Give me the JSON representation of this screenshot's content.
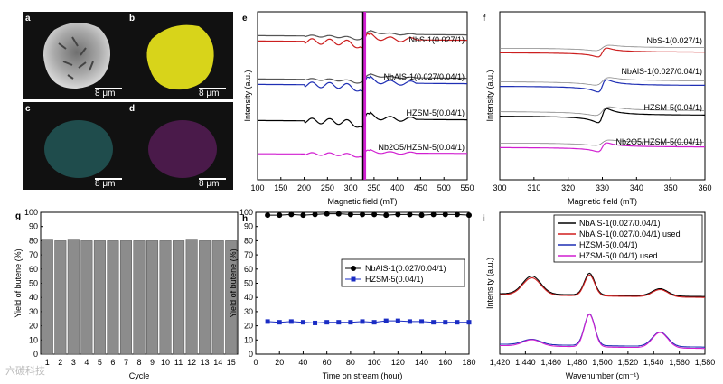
{
  "images": {
    "a": {
      "label": "a",
      "scale": "8 μm",
      "color": "#9a9a9a"
    },
    "b": {
      "label": "b",
      "scale": "8 μm",
      "color": "#d8d41a"
    },
    "c": {
      "label": "c",
      "scale": "8 μm",
      "color": "#1f4c4c"
    },
    "d": {
      "label": "d",
      "scale": "8 μm",
      "color": "#4a1a4a"
    }
  },
  "watermark": "六碳科技",
  "chart_data": [
    {
      "panel": "e",
      "type": "line",
      "xlabel": "Magnetic field (mT)",
      "ylabel": "Intensity (a.u.)",
      "xlim": [
        100,
        550
      ],
      "xticks": [
        100,
        150,
        200,
        250,
        300,
        350,
        400,
        450,
        500,
        550
      ],
      "series": [
        {
          "name": "NbS-1(0.027/1)",
          "color": "#cc1f1f",
          "fit_color": "#555555"
        },
        {
          "name": "NbAlS-1(0.027/0.04/1)",
          "color": "#1f2fb4",
          "fit_color": "#555555"
        },
        {
          "name": "HZSM-5(0.04/1)",
          "color": "#000000"
        },
        {
          "name": "Nb2O5/HZSM-5(0.04/1)",
          "color": "#d11fd1"
        }
      ]
    },
    {
      "panel": "f",
      "type": "line",
      "xlabel": "Magnetic field (mT)",
      "ylabel": "Intensity (a.u.)",
      "xlim": [
        300,
        360
      ],
      "xticks": [
        300,
        310,
        320,
        330,
        340,
        350,
        360
      ],
      "series": [
        {
          "name": "NbS-1(0.027/1)",
          "color": "#cc1f1f"
        },
        {
          "name": "NbAlS-1(0.027/0.04/1)",
          "color": "#1f2fb4"
        },
        {
          "name": "HZSM-5(0.04/1)",
          "color": "#000000"
        },
        {
          "name": "Nb2O5/HZSM-5(0.04/1)",
          "color": "#d11fd1"
        }
      ]
    },
    {
      "panel": "g",
      "type": "bar",
      "xlabel": "Cycle",
      "ylabel": "Yield of butene (%)",
      "ylim": [
        0,
        100
      ],
      "yticks": [
        0,
        10,
        20,
        30,
        40,
        50,
        60,
        70,
        80,
        90,
        100
      ],
      "categories": [
        "1",
        "2",
        "3",
        "4",
        "5",
        "6",
        "7",
        "8",
        "9",
        "10",
        "11",
        "12",
        "13",
        "14",
        "15"
      ],
      "values": [
        80.5,
        80,
        80.5,
        80,
        80,
        80,
        80,
        80,
        80,
        80,
        80,
        80.5,
        80,
        80,
        80
      ],
      "bar_color": "#8c8c8c"
    },
    {
      "panel": "h",
      "type": "scatter",
      "xlabel": "Time on stream (hour)",
      "ylabel": "Yield of butene (%)",
      "xlim": [
        0,
        180
      ],
      "ylim": [
        0,
        100
      ],
      "xticks": [
        0,
        20,
        40,
        60,
        80,
        100,
        120,
        140,
        160,
        180
      ],
      "yticks": [
        0,
        10,
        20,
        30,
        40,
        50,
        60,
        70,
        80,
        90,
        100
      ],
      "series": [
        {
          "name": "NbAlS-1(0.027/0.04/1)",
          "color": "#000000",
          "marker": "circle",
          "x": [
            10,
            20,
            30,
            40,
            50,
            60,
            70,
            80,
            90,
            100,
            110,
            120,
            130,
            140,
            150,
            160,
            170,
            180
          ],
          "y": [
            98,
            98,
            98.5,
            98,
            98.5,
            99,
            99,
            98.5,
            98.5,
            98.5,
            98,
            98.5,
            98.5,
            98,
            98.5,
            98.5,
            98.5,
            98
          ]
        },
        {
          "name": "HZSM-5(0.04/1)",
          "color": "#1a2cc4",
          "marker": "square",
          "x": [
            10,
            20,
            30,
            40,
            50,
            60,
            70,
            80,
            90,
            100,
            110,
            120,
            130,
            140,
            150,
            160,
            170,
            180
          ],
          "y": [
            23,
            22.5,
            23,
            22.5,
            22,
            22.5,
            22.5,
            22.5,
            23,
            22.5,
            23.5,
            23.5,
            23,
            23,
            22.5,
            22.5,
            22.5,
            22.5
          ]
        }
      ]
    },
    {
      "panel": "i",
      "type": "line",
      "xlabel": "Wavenumber (cm⁻¹)",
      "ylabel": "Intensity (a.u.)",
      "xlim": [
        1420,
        1580
      ],
      "xticks": [
        "1,420",
        "1,440",
        "1,460",
        "1,480",
        "1,500",
        "1,520",
        "1,540",
        "1,560",
        "1,580"
      ],
      "series": [
        {
          "name": "NbAlS-1(0.027/0.04/1)",
          "color": "#000000"
        },
        {
          "name": "NbAlS-1(0.027/0.04/1) used",
          "color": "#d11f1f"
        },
        {
          "name": "HZSM-5(0.04/1)",
          "color": "#1f2fb4"
        },
        {
          "name": "HZSM-5(0.04/1) used",
          "color": "#d11fd1"
        }
      ]
    }
  ]
}
